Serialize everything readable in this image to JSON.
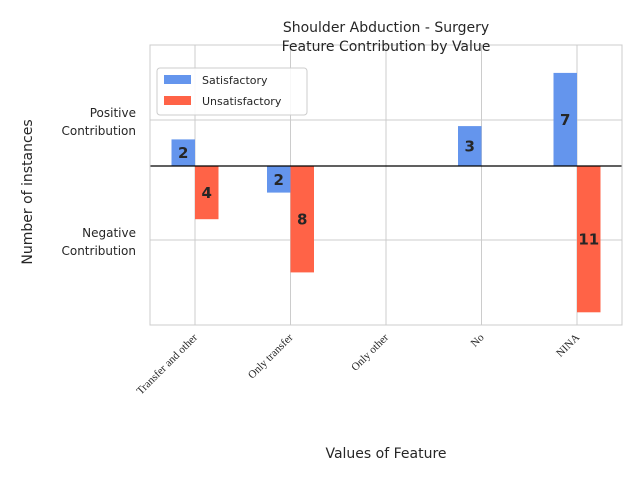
{
  "chart_data": {
    "type": "bar",
    "title_line1": "Shoulder Abduction - Surgery",
    "title_line2": "Feature Contribution by Value",
    "xlabel": "Values of Feature",
    "ylabel": "Number of instances",
    "ytick_labels": [
      {
        "line1": "Positive",
        "line2": "Contribution"
      },
      {
        "line1": "Negative",
        "line2": "Contribution"
      }
    ],
    "categories": [
      "Transfer and other",
      "Only transfer",
      "Only other",
      "No",
      "NINA"
    ],
    "series": [
      {
        "name": "Satisfactory",
        "color": "#6495ed",
        "values": [
          2,
          -2,
          0,
          3,
          7
        ]
      },
      {
        "name": "Unsatisfactory",
        "color": "#ff6347",
        "values": [
          -4,
          -8,
          0,
          0,
          -11
        ]
      }
    ],
    "bar_labels": {
      "Satisfactory": [
        "2",
        "2",
        "",
        "3",
        "7"
      ],
      "Unsatisfactory": [
        "4",
        "8",
        "",
        "",
        "11"
      ]
    },
    "legend_position": "top-left",
    "grid": true
  }
}
